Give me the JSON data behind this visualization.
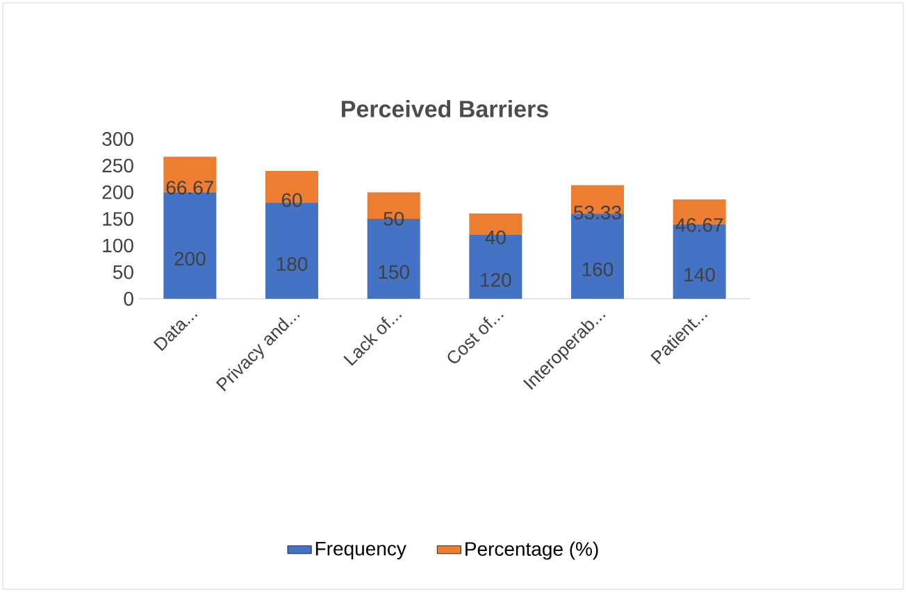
{
  "chart_data": {
    "type": "bar",
    "stacked": true,
    "title": "Perceived Barriers",
    "categories": [
      "Data...",
      "Privacy and...",
      "Lack of...",
      "Cost of...",
      "Interoperab...",
      "Patient..."
    ],
    "series": [
      {
        "name": "Frequency",
        "color": "#4472c4",
        "values": [
          200,
          180,
          150,
          120,
          160,
          140
        ]
      },
      {
        "name": "Percentage (%)",
        "color": "#ed7d31",
        "values": [
          66.67,
          60,
          50,
          40,
          53.33,
          46.67
        ]
      }
    ],
    "ylim": [
      0,
      300
    ],
    "yticks": [
      0,
      50,
      100,
      150,
      200,
      250,
      300
    ],
    "data_labels": true,
    "legend": "bottom",
    "grid": false
  }
}
